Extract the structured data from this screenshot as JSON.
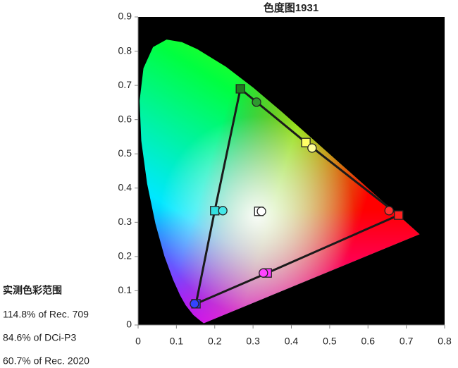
{
  "chart_data": {
    "type": "chromaticity",
    "title": "色度图1931",
    "xlim": [
      0,
      0.8
    ],
    "ylim": [
      0,
      0.9
    ],
    "xticks": [
      0,
      0.1,
      0.2,
      0.3,
      0.4,
      0.5,
      0.6,
      0.7,
      0.8
    ],
    "yticks": [
      0,
      0.1,
      0.2,
      0.3,
      0.4,
      0.5,
      0.6,
      0.7,
      0.8,
      0.9
    ],
    "background": "#000000",
    "outline_color": "#1a1a1a",
    "locus": {
      "x": [
        0.1714,
        0.1644,
        0.1566,
        0.144,
        0.1241,
        0.1096,
        0.0913,
        0.0687,
        0.0454,
        0.0235,
        0.0082,
        0.0039,
        0.0139,
        0.0389,
        0.0743,
        0.1142,
        0.1547,
        0.2296,
        0.3016,
        0.3731,
        0.4441,
        0.5125,
        0.5752,
        0.627,
        0.6915,
        0.719,
        0.7347
      ],
      "y": [
        0.0051,
        0.0109,
        0.0177,
        0.0297,
        0.0578,
        0.0868,
        0.1327,
        0.2007,
        0.295,
        0.4127,
        0.5384,
        0.6548,
        0.7502,
        0.812,
        0.8338,
        0.8262,
        0.8059,
        0.7543,
        0.6923,
        0.6245,
        0.5547,
        0.4866,
        0.4242,
        0.3725,
        0.3083,
        0.2809,
        0.2653
      ]
    },
    "series": [
      {
        "marker": "square",
        "outline": true,
        "x": [
          0.267,
          0.438,
          0.68,
          0.337,
          0.151,
          0.2
        ],
        "y": [
          0.69,
          0.533,
          0.321,
          0.152,
          0.062,
          0.334
        ],
        "colors": [
          "#1f7a1f",
          "#ffff66",
          "#ff2020",
          "#ff33ff",
          "#2a3cff",
          "#33e0e0"
        ]
      },
      {
        "marker": "circle",
        "outline": false,
        "x": [
          0.309,
          0.454,
          0.655,
          0.327,
          0.147,
          0.221
        ],
        "y": [
          0.651,
          0.517,
          0.334,
          0.152,
          0.062,
          0.334
        ],
        "colors": [
          "#2e9a2e",
          "#ffff99",
          "#ff3030",
          "#ff44ff",
          "#3344ff",
          "#44e8e8"
        ]
      },
      {
        "marker": "square",
        "outline": false,
        "x": [
          0.315
        ],
        "y": [
          0.332
        ],
        "colors": [
          "#ffffff"
        ]
      },
      {
        "marker": "circle",
        "outline": false,
        "x": [
          0.322
        ],
        "y": [
          0.332
        ],
        "colors": [
          "#ffffff"
        ]
      }
    ]
  },
  "side_panel": {
    "heading": "实测色彩范围",
    "lines": [
      "114.8% of Rec. 709",
      "84.6% of DCi-P3",
      "60.7% of Rec. 2020"
    ]
  }
}
